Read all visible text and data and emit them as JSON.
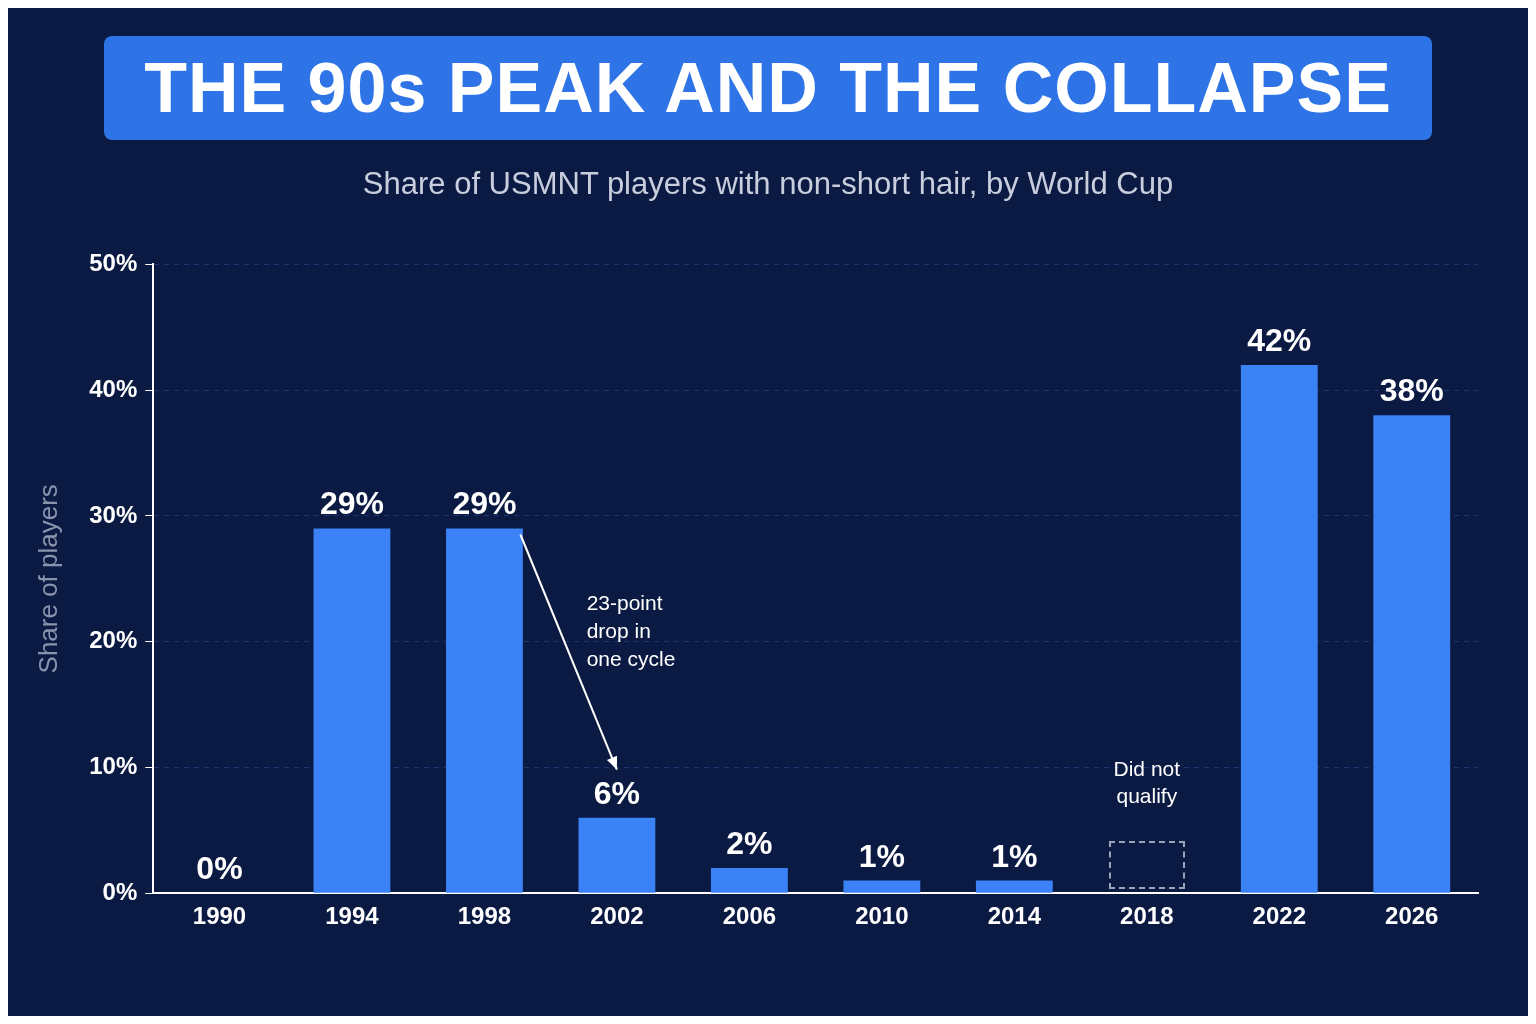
{
  "chart_data": {
    "type": "bar",
    "title": "THE 90s PEAK AND THE COLLAPSE",
    "subtitle": "Share of USMNT players with non-short hair, by World Cup",
    "ylabel": "Share of players",
    "categories": [
      "1990",
      "1994",
      "1998",
      "2002",
      "2006",
      "2010",
      "2014",
      "2018",
      "2022",
      "2026"
    ],
    "values": [
      0,
      29,
      29,
      6,
      2,
      1,
      1,
      null,
      42,
      38
    ],
    "value_labels": [
      "0%",
      "29%",
      "29%",
      "6%",
      "2%",
      "1%",
      "1%",
      null,
      "42%",
      "38%"
    ],
    "color": "#3b82f6",
    "ylim": [
      0,
      50
    ],
    "yticks": [
      {
        "value": 0,
        "label": "0%"
      },
      {
        "value": 10,
        "label": "10%"
      },
      {
        "value": 20,
        "label": "20%"
      },
      {
        "value": 30,
        "label": "30%"
      },
      {
        "value": 40,
        "label": "40%"
      },
      {
        "value": 50,
        "label": "50%"
      }
    ],
    "grid": "y",
    "legend": false,
    "annotations": [
      "23-point drop in one cycle",
      "Did not qualify"
    ]
  }
}
